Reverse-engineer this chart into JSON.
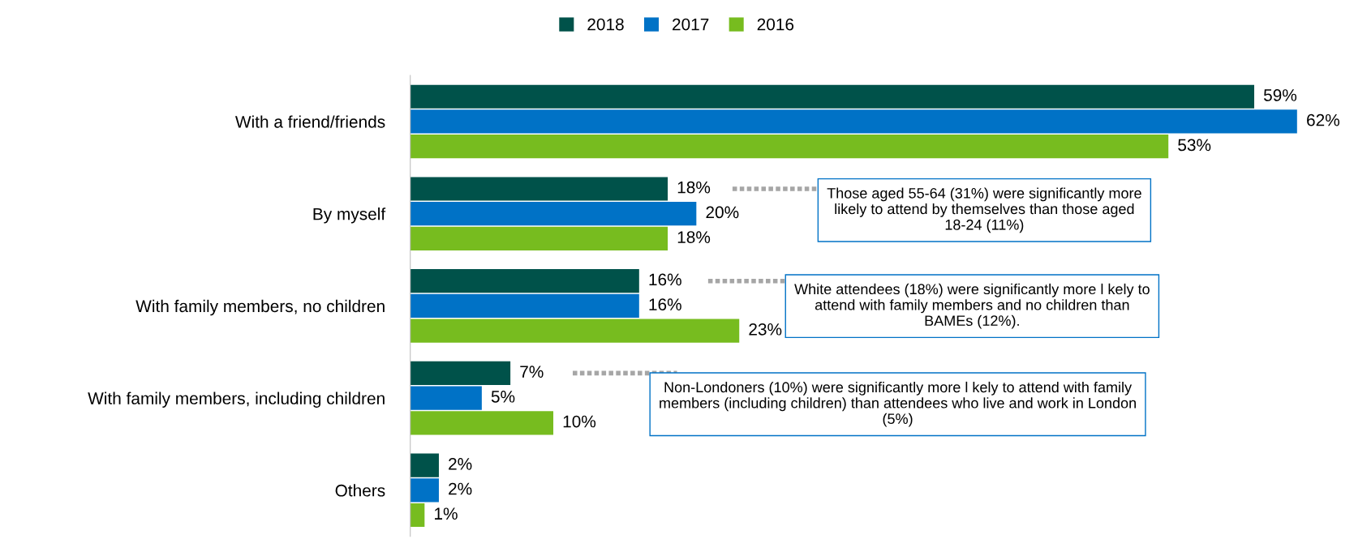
{
  "chart_data": {
    "type": "bar",
    "orientation": "horizontal",
    "categories": [
      "With a friend/friends",
      "By myself",
      "With family members, no children",
      "With family members, including children",
      "Others"
    ],
    "series": [
      {
        "name": "2018",
        "color": "#00524a",
        "values": [
          59,
          18,
          16,
          7,
          2
        ],
        "value_labels": [
          "59%",
          "18%",
          "16%",
          "7%",
          "2%"
        ]
      },
      {
        "name": "2017",
        "color": "#0072c6",
        "values": [
          62,
          20,
          16,
          5,
          2
        ],
        "value_labels": [
          "62%",
          "20%",
          "16%",
          "5%",
          "2%"
        ]
      },
      {
        "name": "2016",
        "color": "#77bc1f",
        "values": [
          53,
          18,
          23,
          10,
          1
        ],
        "value_labels": [
          "53%",
          "18%",
          "23%",
          "10%",
          "1%"
        ]
      }
    ],
    "legend": "top",
    "grid": false,
    "tick_labels": "y",
    "annotations": [
      "Those aged 55-64 (31%) were significantly more likely to attend by themselves than those aged 18-24 (11%)",
      "White attendees (18%) were significantly more l kely to attend with family members and no children than BAMEs (12%).",
      "Non-Londoners (10%) were significantly more l kely to attend with family members (including children) than attendees who live and work in London (5%)"
    ]
  }
}
